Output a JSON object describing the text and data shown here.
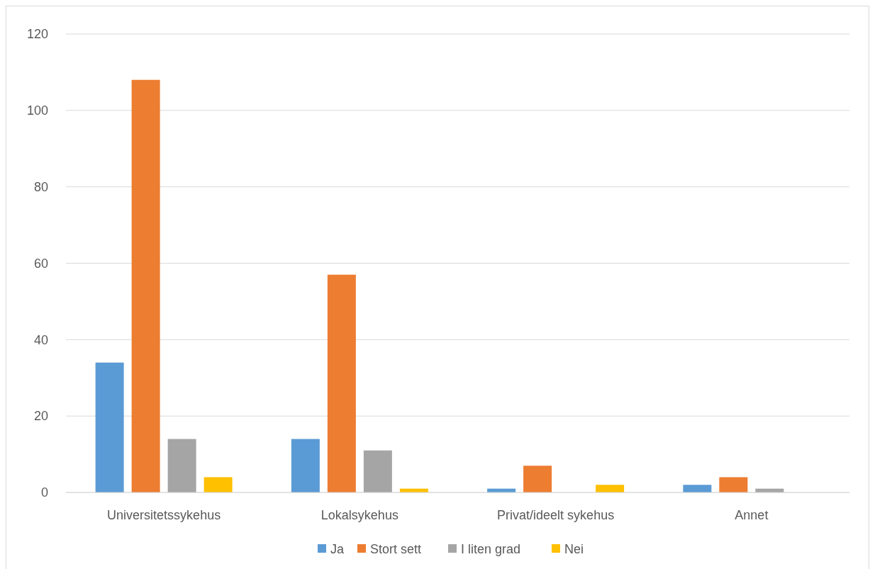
{
  "chart_data": {
    "type": "bar",
    "categories": [
      "Universitetssykehus",
      "Lokalsykehus",
      "Privat/ideelt sykehus",
      "Annet"
    ],
    "series": [
      {
        "name": "Ja",
        "color": "#5b9bd5",
        "values": [
          34,
          14,
          1,
          2
        ]
      },
      {
        "name": "Stort sett",
        "color": "#ed7d31",
        "values": [
          108,
          57,
          7,
          4
        ]
      },
      {
        "name": "I liten grad",
        "color": "#a5a5a5",
        "values": [
          14,
          11,
          0,
          1
        ]
      },
      {
        "name": "Nei",
        "color": "#ffc000",
        "values": [
          4,
          1,
          2,
          0
        ]
      }
    ],
    "ylim": [
      0,
      120
    ],
    "yticks": [
      0,
      20,
      40,
      60,
      80,
      100,
      120
    ],
    "grid": "y",
    "legend": "bottom"
  }
}
